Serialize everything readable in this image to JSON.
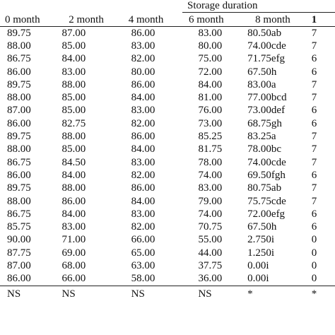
{
  "table": {
    "group_header": "Storage duration",
    "headers": [
      "0 month",
      "2 month",
      "4 month",
      "6 month",
      "8 month",
      "1"
    ],
    "rows": [
      [
        "89.75",
        "87.00",
        "86.00",
        "83.00",
        "80.50ab",
        "7"
      ],
      [
        "88.00",
        "85.00",
        "83.00",
        "80.00",
        "74.00cde",
        "7"
      ],
      [
        "86.75",
        "84.00",
        "82.00",
        "75.00",
        "71.75efg",
        "6"
      ],
      [
        "86.00",
        "83.00",
        "80.00",
        "72.00",
        "67.50h",
        "6"
      ],
      [
        "89.75",
        "88.00",
        "86.00",
        "84.00",
        "83.00a",
        "7"
      ],
      [
        "88.00",
        "85.00",
        "84.00",
        "81.00",
        "77.00bcd",
        "7"
      ],
      [
        "87.00",
        "85.00",
        "83.00",
        "76.00",
        "73.00def",
        "6"
      ],
      [
        "86.00",
        "82.75",
        "82.00",
        "73.00",
        "68.75gh",
        "6"
      ],
      [
        "89.75",
        "88.00",
        "86.00",
        "85.25",
        "83.25a",
        "7"
      ],
      [
        "88.00",
        "85.00",
        "84.00",
        "81.75",
        "78.00bc",
        "7"
      ],
      [
        "86.75",
        "84.50",
        "83.00",
        "78.00",
        "74.00cde",
        "7"
      ],
      [
        "86.00",
        "84.00",
        "82.00",
        "74.00",
        "69.50fgh",
        "6"
      ],
      [
        "89.75",
        "88.00",
        "86.00",
        "83.00",
        "80.75ab",
        "7"
      ],
      [
        "88.00",
        "86.00",
        "84.00",
        "79.00",
        "75.75cde",
        "7"
      ],
      [
        "86.75",
        "84.00",
        "83.00",
        "74.00",
        "72.00efg",
        "6"
      ],
      [
        "85.75",
        "83.00",
        "82.00",
        "70.75",
        "67.50h",
        "6"
      ],
      [
        "90.00",
        "71.00",
        "66.00",
        "55.00",
        "2.750i",
        "0"
      ],
      [
        "87.75",
        "69.00",
        "65.00",
        "44.00",
        "1.250i",
        "0"
      ],
      [
        "87.00",
        "68.00",
        "63.00",
        "37.75",
        "0.00i",
        "0"
      ],
      [
        "86.00",
        "66.00",
        "58.00",
        "36.00",
        "0.00i",
        "0"
      ]
    ],
    "significance": [
      "NS",
      "NS",
      "NS",
      "NS",
      "*",
      "*"
    ]
  }
}
